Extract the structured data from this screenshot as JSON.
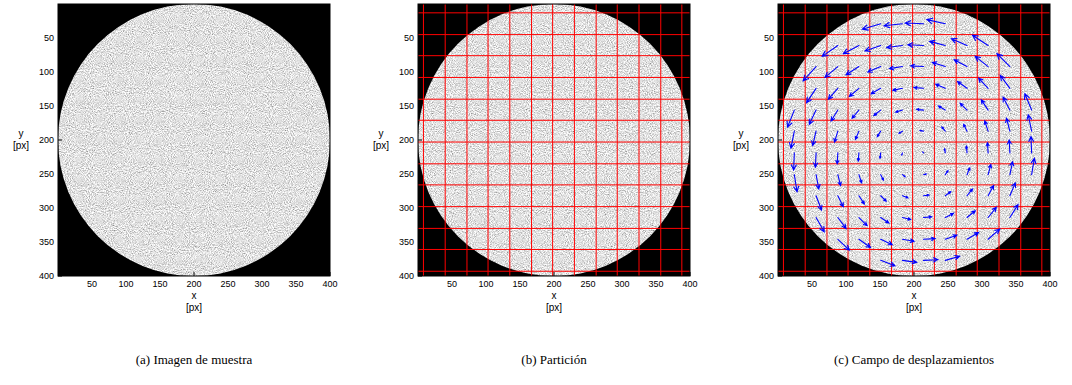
{
  "chart_data": [
    {
      "type": "image",
      "caption": "(a) Imagen de muestra",
      "xlabel": "x",
      "xunit": "[px]",
      "ylabel": "y",
      "yunit": "[px]",
      "xlim": [
        0,
        400
      ],
      "ylim": [
        400,
        0
      ],
      "xticks": [
        50,
        100,
        150,
        200,
        250,
        300,
        350,
        400
      ],
      "yticks": [
        50,
        100,
        150,
        200,
        250,
        300,
        350,
        400
      ],
      "disk": {
        "cx": 200,
        "cy": 200,
        "r": 200
      }
    },
    {
      "type": "partition",
      "caption": "(b) Partición",
      "xlabel": "x",
      "xunit": "[px]",
      "ylabel": "y",
      "yunit": "[px]",
      "xlim": [
        0,
        400
      ],
      "ylim": [
        400,
        0
      ],
      "xticks": [
        50,
        100,
        150,
        200,
        250,
        300,
        350,
        400
      ],
      "yticks": [
        50,
        100,
        150,
        200,
        250,
        300,
        350,
        400
      ],
      "disk": {
        "cx": 200,
        "cy": 200,
        "r": 200
      },
      "grid_x": [
        8,
        40,
        72,
        103,
        135,
        167,
        198,
        230,
        262,
        293,
        325,
        357,
        388
      ],
      "grid_y": [
        13,
        45,
        76,
        108,
        140,
        171,
        203,
        235,
        266,
        298,
        330,
        361,
        393
      ]
    },
    {
      "type": "quiver",
      "caption": "(c) Campo de desplazamientos",
      "xlabel": "x",
      "xunit": "[px]",
      "ylabel": "y",
      "yunit": "[px]",
      "xlim": [
        0,
        400
      ],
      "ylim": [
        400,
        0
      ],
      "xticks": [
        50,
        100,
        150,
        200,
        250,
        300,
        350,
        400
      ],
      "yticks": [
        50,
        100,
        150,
        200,
        250,
        300,
        350,
        400
      ],
      "disk": {
        "cx": 200,
        "cy": 200,
        "r": 200
      },
      "grid_x": [
        8,
        40,
        72,
        103,
        135,
        167,
        198,
        230,
        262,
        293,
        325,
        357,
        388
      ],
      "grid_y": [
        13,
        45,
        76,
        108,
        140,
        171,
        203,
        235,
        266,
        298,
        330,
        361,
        393
      ],
      "color": "#0000ff",
      "vectors": [
        [
          151,
          29,
          -27,
          8
        ],
        [
          183,
          29,
          -27,
          3
        ],
        [
          214,
          29,
          -27,
          -1
        ],
        [
          246,
          29,
          -27,
          -6
        ],
        [
          88,
          61,
          -23,
          16
        ],
        [
          119,
          61,
          -23,
          12
        ],
        [
          151,
          61,
          -23,
          8
        ],
        [
          183,
          61,
          -23,
          3
        ],
        [
          214,
          61,
          -23,
          -1
        ],
        [
          246,
          61,
          -23,
          -6
        ],
        [
          278,
          61,
          -23,
          -10
        ],
        [
          309,
          61,
          -23,
          -15
        ],
        [
          56,
          92,
          -19,
          21
        ],
        [
          88,
          92,
          -19,
          16
        ],
        [
          119,
          92,
          -19,
          12
        ],
        [
          151,
          92,
          -19,
          8
        ],
        [
          183,
          92,
          -19,
          3
        ],
        [
          214,
          92,
          -19,
          -1
        ],
        [
          246,
          92,
          -19,
          -6
        ],
        [
          278,
          92,
          -19,
          -10
        ],
        [
          309,
          92,
          -19,
          -15
        ],
        [
          341,
          92,
          -19,
          -19
        ],
        [
          56,
          124,
          -14,
          21
        ],
        [
          88,
          124,
          -14,
          16
        ],
        [
          119,
          124,
          -14,
          12
        ],
        [
          151,
          124,
          -14,
          8
        ],
        [
          183,
          124,
          -14,
          3
        ],
        [
          214,
          124,
          -14,
          -1
        ],
        [
          246,
          124,
          -14,
          -6
        ],
        [
          278,
          124,
          -14,
          -10
        ],
        [
          309,
          124,
          -14,
          -15
        ],
        [
          341,
          124,
          -14,
          -19
        ],
        [
          24,
          156,
          -10,
          25
        ],
        [
          56,
          156,
          -10,
          21
        ],
        [
          88,
          156,
          -10,
          16
        ],
        [
          119,
          156,
          -10,
          12
        ],
        [
          151,
          156,
          -10,
          8
        ],
        [
          183,
          156,
          -10,
          3
        ],
        [
          214,
          156,
          -10,
          -1
        ],
        [
          246,
          156,
          -10,
          -6
        ],
        [
          278,
          156,
          -10,
          -10
        ],
        [
          309,
          156,
          -10,
          -15
        ],
        [
          341,
          156,
          -10,
          -19
        ],
        [
          373,
          156,
          -10,
          -24
        ],
        [
          24,
          187,
          -5,
          25
        ],
        [
          56,
          187,
          -5,
          21
        ],
        [
          88,
          187,
          -5,
          16
        ],
        [
          119,
          187,
          -5,
          12
        ],
        [
          151,
          187,
          -5,
          8
        ],
        [
          183,
          187,
          -5,
          3
        ],
        [
          214,
          187,
          -5,
          -1
        ],
        [
          246,
          187,
          -5,
          -6
        ],
        [
          278,
          187,
          -5,
          -10
        ],
        [
          309,
          187,
          -5,
          -15
        ],
        [
          341,
          187,
          -5,
          -19
        ],
        [
          373,
          187,
          -5,
          -24
        ],
        [
          24,
          219,
          -1,
          25
        ],
        [
          56,
          219,
          -1,
          21
        ],
        [
          88,
          219,
          -1,
          16
        ],
        [
          119,
          219,
          -1,
          12
        ],
        [
          151,
          219,
          -1,
          8
        ],
        [
          183,
          219,
          -1,
          3
        ],
        [
          214,
          219,
          -1,
          -1
        ],
        [
          246,
          219,
          -1,
          -6
        ],
        [
          278,
          219,
          -1,
          -10
        ],
        [
          309,
          219,
          -1,
          -15
        ],
        [
          341,
          219,
          -1,
          -19
        ],
        [
          373,
          219,
          -1,
          -24
        ],
        [
          24,
          251,
          4,
          25
        ],
        [
          56,
          251,
          4,
          21
        ],
        [
          88,
          251,
          4,
          16
        ],
        [
          119,
          251,
          4,
          12
        ],
        [
          151,
          251,
          4,
          8
        ],
        [
          183,
          251,
          4,
          3
        ],
        [
          214,
          251,
          4,
          -1
        ],
        [
          246,
          251,
          4,
          -6
        ],
        [
          278,
          251,
          4,
          -10
        ],
        [
          309,
          251,
          4,
          -15
        ],
        [
          341,
          251,
          4,
          -19
        ],
        [
          373,
          251,
          4,
          -24
        ],
        [
          56,
          282,
          8,
          21
        ],
        [
          88,
          282,
          8,
          16
        ],
        [
          119,
          282,
          8,
          12
        ],
        [
          151,
          282,
          8,
          8
        ],
        [
          183,
          282,
          8,
          3
        ],
        [
          214,
          282,
          8,
          -1
        ],
        [
          246,
          282,
          8,
          -6
        ],
        [
          278,
          282,
          8,
          -10
        ],
        [
          309,
          282,
          8,
          -15
        ],
        [
          341,
          282,
          8,
          -19
        ],
        [
          56,
          314,
          12,
          21
        ],
        [
          88,
          314,
          12,
          16
        ],
        [
          119,
          314,
          12,
          12
        ],
        [
          151,
          314,
          12,
          8
        ],
        [
          183,
          314,
          12,
          3
        ],
        [
          214,
          314,
          12,
          -1
        ],
        [
          246,
          314,
          12,
          -6
        ],
        [
          278,
          314,
          12,
          -10
        ],
        [
          309,
          314,
          12,
          -15
        ],
        [
          341,
          314,
          12,
          -19
        ],
        [
          88,
          346,
          17,
          16
        ],
        [
          119,
          346,
          17,
          12
        ],
        [
          151,
          346,
          17,
          8
        ],
        [
          183,
          346,
          17,
          3
        ],
        [
          214,
          346,
          17,
          -1
        ],
        [
          246,
          346,
          17,
          -6
        ],
        [
          278,
          346,
          17,
          -10
        ],
        [
          309,
          346,
          17,
          -15
        ],
        [
          151,
          377,
          21,
          8
        ],
        [
          183,
          377,
          21,
          3
        ],
        [
          214,
          377,
          21,
          -1
        ],
        [
          246,
          377,
          21,
          -6
        ]
      ]
    }
  ]
}
